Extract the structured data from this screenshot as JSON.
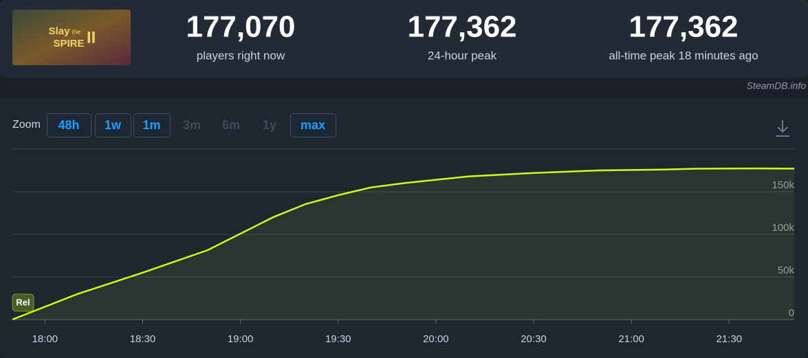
{
  "header": {
    "image_text": [
      "Slay",
      "the",
      "SPIRE",
      "II"
    ],
    "stats": [
      {
        "value": "177,070",
        "label": "players right now"
      },
      {
        "value": "177,362",
        "label": "24-hour peak"
      },
      {
        "value": "177,362",
        "label": "all-time peak 18 minutes ago"
      }
    ],
    "source": "SteamDB.info"
  },
  "zoom": {
    "label": "Zoom",
    "buttons": [
      {
        "label": "48h",
        "enabled": true
      },
      {
        "label": "1w",
        "enabled": true
      },
      {
        "label": "1m",
        "enabled": true
      },
      {
        "label": "3m",
        "enabled": false
      },
      {
        "label": "6m",
        "enabled": false
      },
      {
        "label": "1y",
        "enabled": false
      },
      {
        "label": "max",
        "enabled": true
      }
    ]
  },
  "chart_data": {
    "type": "line",
    "color": "#ccff1a",
    "annotation": "Rel",
    "x": [
      "17:50",
      "18:10",
      "18:30",
      "18:50",
      "19:10",
      "19:20",
      "19:30",
      "19:40",
      "19:50",
      "20:00",
      "20:10",
      "20:20",
      "20:30",
      "20:40",
      "20:50",
      "21:00",
      "21:10",
      "21:20",
      "21:30",
      "21:40",
      "21:50"
    ],
    "values": [
      0,
      30000,
      55000,
      81500,
      120000,
      135500,
      146000,
      155000,
      160000,
      164000,
      168000,
      170000,
      172000,
      173500,
      175000,
      175500,
      176000,
      177000,
      177200,
      177362,
      177070
    ],
    "xlim": [
      "17:50",
      "21:50"
    ],
    "xticks": [
      "18:00",
      "18:30",
      "19:00",
      "19:30",
      "20:00",
      "20:30",
      "21:00",
      "21:30"
    ],
    "ylim": [
      0,
      200000
    ],
    "yticks": [
      0,
      {
        "value": 50000,
        "label": "50k"
      },
      {
        "value": 100000,
        "label": "100k"
      },
      {
        "value": 150000,
        "label": "150k"
      }
    ],
    "grid": true
  }
}
